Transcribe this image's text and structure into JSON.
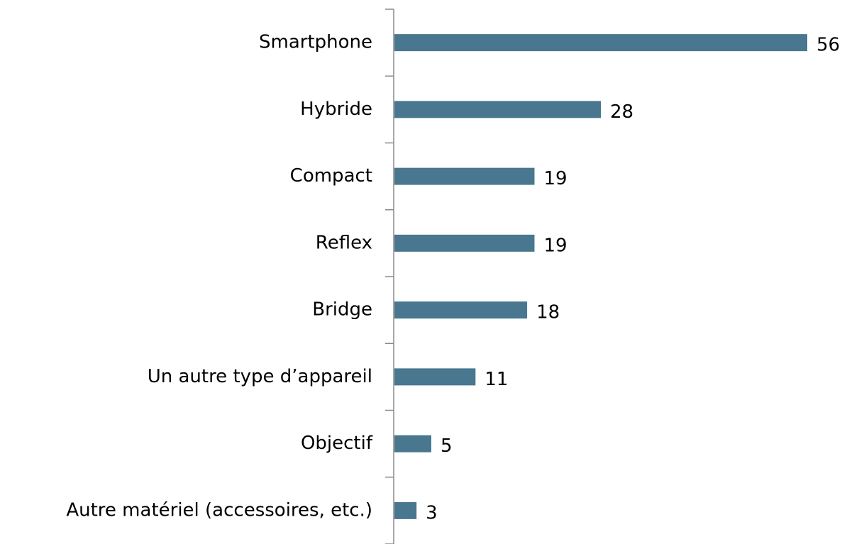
{
  "chart_data": {
    "type": "bar",
    "orientation": "horizontal",
    "categories": [
      "Smartphone",
      "Hybride",
      "Compact",
      "Reflex",
      "Bridge",
      "Un autre type d’appareil",
      "Objectif",
      "Autre matériel (accessoires, etc.)"
    ],
    "values": [
      56,
      28,
      19,
      19,
      18,
      11,
      5,
      3
    ],
    "color": "#48778f"
  }
}
